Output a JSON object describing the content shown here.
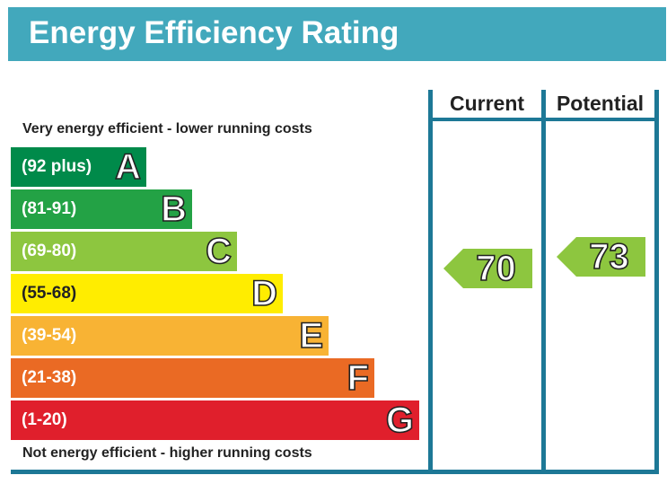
{
  "header": {
    "title": "Energy Efficiency Rating"
  },
  "columns": {
    "current_label": "Current",
    "potential_label": "Potential"
  },
  "captions": {
    "top": "Very energy efficient - lower running costs",
    "bottom": "Not energy efficient - higher running costs"
  },
  "colors": {
    "header": "#42a8bc",
    "frame": "#1d7896",
    "A": "#008a4a",
    "B": "#23a245",
    "C": "#8dc63f",
    "D": "#ffed00",
    "E": "#f8b334",
    "F": "#ea6a24",
    "G": "#e01f2c"
  },
  "chart_data": {
    "type": "bar",
    "categories": [
      "A",
      "B",
      "C",
      "D",
      "E",
      "F",
      "G"
    ],
    "bands": [
      {
        "letter": "A",
        "range": "(92 plus)",
        "min": 92,
        "max": 100
      },
      {
        "letter": "B",
        "range": "(81-91)",
        "min": 81,
        "max": 91
      },
      {
        "letter": "C",
        "range": "(69-80)",
        "min": 69,
        "max": 80
      },
      {
        "letter": "D",
        "range": "(55-68)",
        "min": 55,
        "max": 68
      },
      {
        "letter": "E",
        "range": "(39-54)",
        "min": 39,
        "max": 54
      },
      {
        "letter": "F",
        "range": "(21-38)",
        "min": 21,
        "max": 38
      },
      {
        "letter": "G",
        "range": "(1-20)",
        "min": 1,
        "max": 20
      }
    ],
    "current": {
      "value": "70",
      "band": "C"
    },
    "potential": {
      "value": "73",
      "band": "C"
    }
  }
}
